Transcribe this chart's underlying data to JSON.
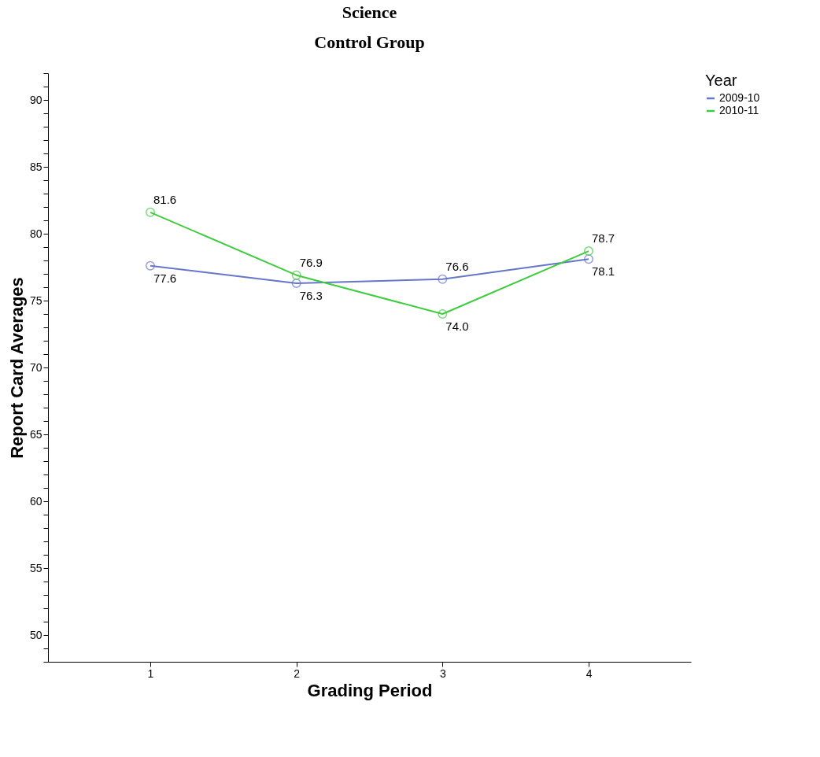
{
  "chart_data": {
    "type": "line",
    "title": "Science",
    "subtitle": "Control Group",
    "xlabel": "Grading Period",
    "ylabel": "Report Card Averages",
    "legend_title": "Year",
    "x": [
      1,
      2,
      3,
      4
    ],
    "xlim": [
      0.3,
      4.7
    ],
    "xticks": [
      1,
      2,
      3,
      4
    ],
    "ylim": [
      48,
      92
    ],
    "yticks": [
      {
        "value": 48,
        "label": null
      },
      {
        "value": 49,
        "label": null
      },
      50,
      {
        "value": 51,
        "label": null
      },
      {
        "value": 52,
        "label": null
      },
      {
        "value": 53,
        "label": null
      },
      {
        "value": 54,
        "label": null
      },
      55,
      {
        "value": 56,
        "label": null
      },
      {
        "value": 57,
        "label": null
      },
      {
        "value": 58,
        "label": null
      },
      {
        "value": 59,
        "label": null
      },
      60,
      {
        "value": 61,
        "label": null
      },
      {
        "value": 62,
        "label": null
      },
      {
        "value": 63,
        "label": null
      },
      {
        "value": 64,
        "label": null
      },
      65,
      {
        "value": 66,
        "label": null
      },
      {
        "value": 67,
        "label": null
      },
      {
        "value": 68,
        "label": null
      },
      {
        "value": 69,
        "label": null
      },
      70,
      {
        "value": 71,
        "label": null
      },
      {
        "value": 72,
        "label": null
      },
      {
        "value": 73,
        "label": null
      },
      {
        "value": 74,
        "label": null
      },
      75,
      {
        "value": 76,
        "label": null
      },
      {
        "value": 77,
        "label": null
      },
      {
        "value": 78,
        "label": null
      },
      {
        "value": 79,
        "label": null
      },
      80,
      {
        "value": 81,
        "label": null
      },
      {
        "value": 82,
        "label": null
      },
      {
        "value": 83,
        "label": null
      },
      {
        "value": 84,
        "label": null
      },
      85,
      {
        "value": 86,
        "label": null
      },
      {
        "value": 87,
        "label": null
      },
      {
        "value": 88,
        "label": null
      },
      {
        "value": 89,
        "label": null
      },
      90,
      {
        "value": 91,
        "label": null
      },
      {
        "value": 92,
        "label": null
      }
    ],
    "series": [
      {
        "name": "2009-10",
        "color": "#6676c8",
        "values": [
          77.6,
          76.3,
          76.6,
          78.1
        ],
        "value_labels": [
          "77.6",
          "76.3",
          "76.6",
          "78.1"
        ]
      },
      {
        "name": "2010-11",
        "color": "#3fcc3f",
        "values": [
          81.6,
          76.9,
          74.0,
          78.7
        ],
        "value_labels": [
          "81.6",
          "76.9",
          "74.0",
          "78.7"
        ]
      }
    ],
    "marker": "circle",
    "grid": false,
    "legend": "top right"
  }
}
